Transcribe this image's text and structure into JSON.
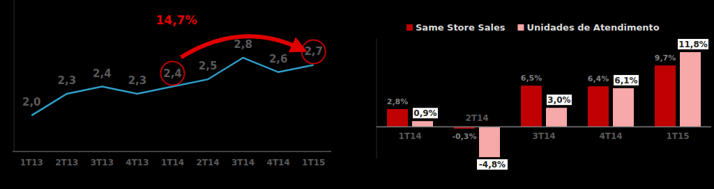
{
  "chart_data": [
    {
      "type": "line",
      "categories": [
        "1T13",
        "2T13",
        "3T13",
        "4T13",
        "1T14",
        "2T14",
        "3T14",
        "4T14",
        "1T15"
      ],
      "values": [
        2.0,
        2.3,
        2.4,
        2.3,
        2.4,
        2.5,
        2.8,
        2.6,
        2.7
      ],
      "value_labels": [
        "2,0",
        "2,3",
        "2,4",
        "2,3",
        "2,4",
        "2,5",
        "2,8",
        "2,6",
        "2,7"
      ],
      "color": "#2e9fc9",
      "ylim": [
        1.5,
        3.6
      ],
      "data_labels": true,
      "tick_labels": "x",
      "grid": false,
      "annotations": [
        {
          "text": "14,7%",
          "from": "1T14",
          "to": "1T15"
        }
      ]
    },
    {
      "type": "bar",
      "categories": [
        "1T14",
        "2T14",
        "3T14",
        "4T14",
        "1T15"
      ],
      "series": [
        {
          "name": "Same Store Sales",
          "color": "#c00000",
          "values": [
            2.8,
            -0.3,
            6.5,
            6.4,
            9.7
          ],
          "value_labels": [
            "2,8%",
            "-0,3%",
            "6,5%",
            "6,4%",
            "9,7%"
          ]
        },
        {
          "name": "Unidades de Atendimento",
          "color": "#f7a8a8",
          "values": [
            0.9,
            -4.8,
            3.0,
            6.1,
            11.8
          ],
          "value_labels": [
            "0,9%",
            "-4,8%",
            "3,0%",
            "6,1%",
            "11,8%"
          ]
        }
      ],
      "ylim": [
        -5,
        14
      ],
      "data_labels": true,
      "legend": "top",
      "tick_labels": "x",
      "grid": false
    }
  ]
}
